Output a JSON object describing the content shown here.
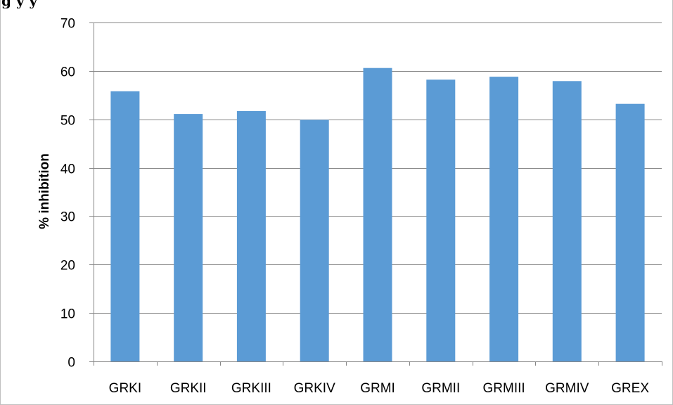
{
  "caption": "g                       y                       y",
  "chart_data": {
    "type": "bar",
    "title": "",
    "xlabel": "",
    "ylabel": "% inhibition",
    "ylim": [
      0,
      70
    ],
    "yticks": [
      0,
      10,
      20,
      30,
      40,
      50,
      60,
      70
    ],
    "grid": true,
    "legend": "none",
    "categories": [
      "GRKI",
      "GRKII",
      "GRKIII",
      "GRKIV",
      "GRMI",
      "GRMII",
      "GRMIII",
      "GRMIV",
      "GREX"
    ],
    "values": [
      55.8,
      51.1,
      51.7,
      49.9,
      60.6,
      58.2,
      58.8,
      57.9,
      53.2
    ],
    "colors": {
      "bar": "#5b9bd5",
      "grid": "#868686",
      "axis": "#868686"
    }
  }
}
